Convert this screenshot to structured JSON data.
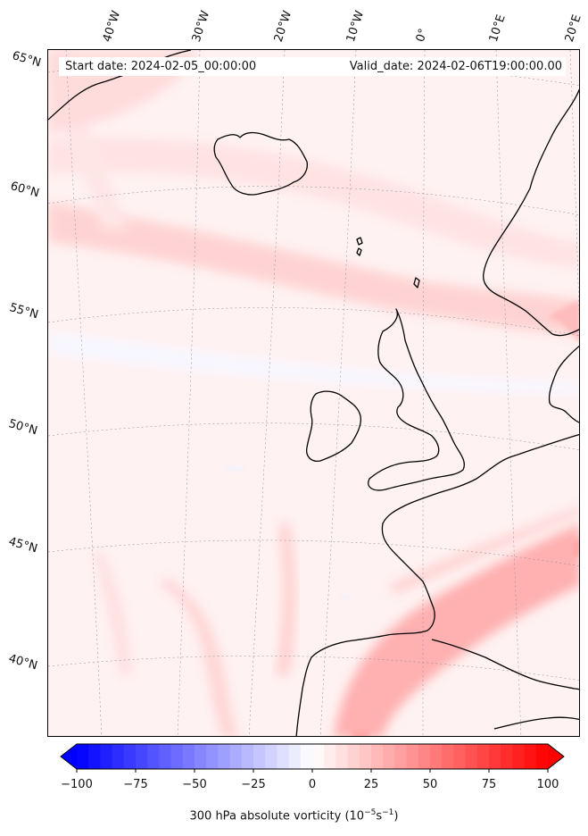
{
  "map": {
    "start_date": "Start date: 2024-02-05_00:00:00",
    "valid_date": "Valid_date: 2024-02-06T19:00:00.00",
    "lon_labels": [
      "40°W",
      "30°W",
      "20°W",
      "10°W",
      "0°",
      "10°E",
      "20°E"
    ],
    "lat_labels": [
      "65°N",
      "60°N",
      "55°N",
      "50°N",
      "45°N",
      "40°N"
    ],
    "field": "300 hPa absolute vorticity",
    "colors": {
      "neg_max": "#0000ff",
      "zero": "#ffffff",
      "pos_max": "#ff0000",
      "coast": "#000000"
    }
  },
  "colorbar": {
    "label": "300 hPa absolute vorticity (10",
    "unit_exp1": "−5",
    "unit_mid": "s",
    "unit_exp2": "−1",
    "unit_close": ")",
    "ticks": [
      "−100",
      "−75",
      "−50",
      "−25",
      "0",
      "25",
      "50",
      "75",
      "100"
    ],
    "min": -100,
    "max": 100
  }
}
